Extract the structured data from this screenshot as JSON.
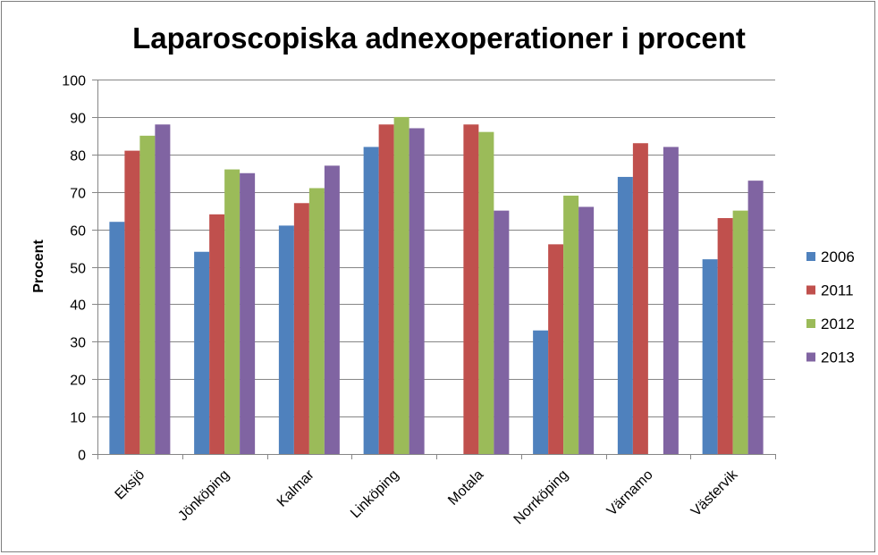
{
  "chart_data": {
    "type": "bar",
    "title": "Laparoscopiska adnexoperationer i procent",
    "xlabel": "",
    "ylabel": "Procent",
    "ylim": [
      0,
      100
    ],
    "yticks": [
      "0",
      "10",
      "20",
      "30",
      "40",
      "50",
      "60",
      "70",
      "80",
      "90",
      "100"
    ],
    "grid": true,
    "legend_position": "right",
    "categories": [
      "Eksjö",
      "Jönköping",
      "Kalmar",
      "Linköping",
      "Motala",
      "Norrköping",
      "Värnamo",
      "Västervik"
    ],
    "series": [
      {
        "name": "2006",
        "color": "#4f81bd",
        "values": [
          62,
          54,
          61,
          82,
          null,
          33,
          74,
          52
        ]
      },
      {
        "name": "2011",
        "color": "#c0504d",
        "values": [
          81,
          64,
          67,
          88,
          88,
          56,
          83,
          63
        ]
      },
      {
        "name": "2012",
        "color": "#9bbb59",
        "values": [
          85,
          76,
          71,
          90,
          86,
          69,
          null,
          65
        ]
      },
      {
        "name": "2013",
        "color": "#8064a2",
        "values": [
          88,
          75,
          77,
          87,
          65,
          66,
          82,
          73
        ]
      }
    ]
  }
}
